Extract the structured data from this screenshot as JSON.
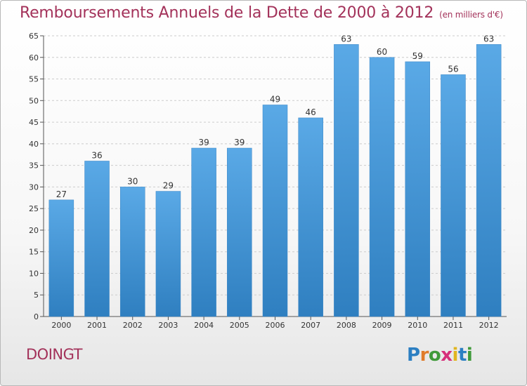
{
  "header": {
    "title": "Remboursements Annuels de la Dette de 2000 à 2012",
    "unit": "(en milliers d'€)"
  },
  "footer": {
    "commune": "DOINGT",
    "logo_letters": [
      "P",
      "r",
      "o",
      "x",
      "i",
      "t",
      "i"
    ]
  },
  "colors": {
    "bar_top": "#5aa9e6",
    "bar_bottom": "#2f7fc0",
    "title": "#a3325a",
    "grid": "#cccccc",
    "axis": "#555555"
  },
  "chart_data": {
    "type": "bar",
    "title": "Remboursements Annuels de la Dette de 2000 à 2012",
    "unit": "(en milliers d'€)",
    "categories": [
      "2000",
      "2001",
      "2002",
      "2003",
      "2004",
      "2005",
      "2006",
      "2007",
      "2008",
      "2009",
      "2010",
      "2011",
      "2012"
    ],
    "values": [
      27,
      36,
      30,
      29,
      39,
      39,
      49,
      46,
      63,
      60,
      59,
      56,
      63
    ],
    "ylim": [
      0,
      65
    ],
    "yticks": [
      0,
      5,
      10,
      15,
      20,
      25,
      30,
      35,
      40,
      45,
      50,
      55,
      60,
      65
    ],
    "grid": true,
    "data_labels": true
  }
}
